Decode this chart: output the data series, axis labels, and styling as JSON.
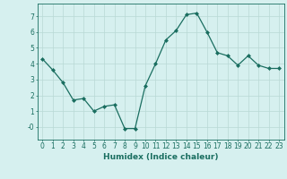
{
  "x": [
    0,
    1,
    2,
    3,
    4,
    5,
    6,
    7,
    8,
    9,
    10,
    11,
    12,
    13,
    14,
    15,
    16,
    17,
    18,
    19,
    20,
    21,
    22,
    23
  ],
  "y": [
    4.3,
    3.6,
    2.8,
    1.7,
    1.8,
    1.0,
    1.3,
    1.4,
    -0.1,
    -0.1,
    2.6,
    4.0,
    5.5,
    6.1,
    7.1,
    7.2,
    6.0,
    4.7,
    4.5,
    3.9,
    4.5,
    3.9,
    3.7,
    3.7
  ],
  "xlabel": "Humidex (Indice chaleur)",
  "xlim": [
    -0.5,
    23.5
  ],
  "ylim": [
    -0.8,
    7.8
  ],
  "yticks": [
    0,
    1,
    2,
    3,
    4,
    5,
    6,
    7
  ],
  "ytick_labels": [
    "-0",
    "1",
    "2",
    "3",
    "4",
    "5",
    "6",
    "7"
  ],
  "xticks": [
    0,
    1,
    2,
    3,
    4,
    5,
    6,
    7,
    8,
    9,
    10,
    11,
    12,
    13,
    14,
    15,
    16,
    17,
    18,
    19,
    20,
    21,
    22,
    23
  ],
  "line_color": "#1a6e60",
  "bg_color": "#d6f0ef",
  "grid_color": "#b8d8d5",
  "xlabel_fontsize": 6.5,
  "tick_fontsize": 5.5
}
